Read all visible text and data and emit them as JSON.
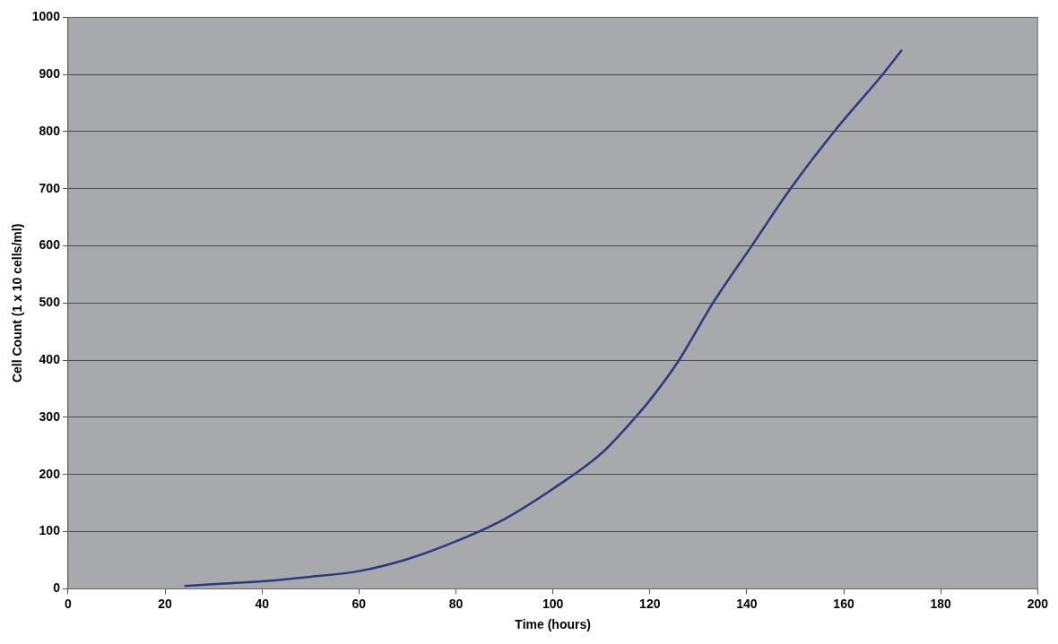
{
  "chart_data": {
    "type": "line",
    "xlabel": "Time (hours)",
    "ylabel": "Cell Count (1 x 10 cells/ml)",
    "series": [
      {
        "color": "#2b3a80",
        "x": [
          24,
          30,
          40,
          50,
          60,
          70,
          80,
          90,
          100,
          110,
          117,
          120,
          126,
          133,
          141,
          149,
          158,
          168,
          172
        ],
        "values": [
          5,
          8,
          13,
          21,
          31,
          52,
          83,
          122,
          175,
          237,
          300,
          330,
          400,
          500,
          600,
          700,
          800,
          900,
          943
        ]
      }
    ],
    "xlim": [
      0,
      200
    ],
    "xticks": [
      0,
      20,
      40,
      60,
      80,
      100,
      120,
      140,
      160,
      180,
      200
    ],
    "ylim": [
      0,
      1000
    ],
    "yticks": [
      0,
      100,
      200,
      300,
      400,
      500,
      600,
      700,
      800,
      900,
      1000
    ],
    "grid": "y",
    "legend": false,
    "marker": "none",
    "line_style": "solid"
  }
}
